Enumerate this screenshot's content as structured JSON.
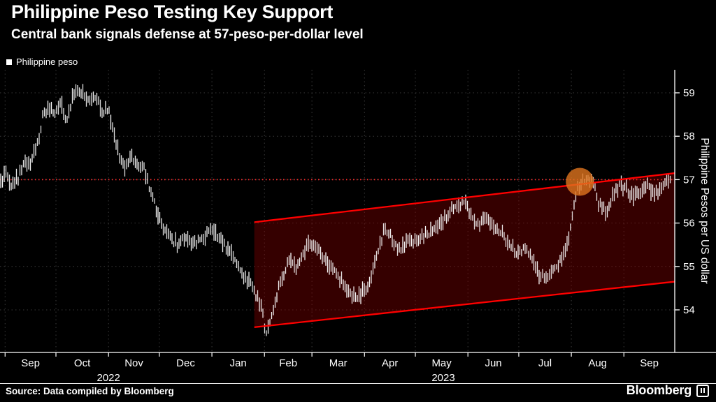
{
  "chart_data": {
    "type": "line",
    "style": "daily_range_bars",
    "title": "Philippine Peso Testing Key Support",
    "subtitle": "Central bank signals defense at 57-peso-per-dollar level",
    "ylabel": "Philippine Pesos per US dollar",
    "background": "#000000",
    "grid_color": "#3a3a3a",
    "axis_color": "#ffffff",
    "bar_color": "#ffffff",
    "grid": true,
    "ylim": [
      53.0,
      59.6
    ],
    "y_ticks": [
      54,
      55,
      56,
      57,
      58,
      59
    ],
    "x_range": [
      "2022-08-29",
      "2023-10-01"
    ],
    "x_tick_labels": [
      "Sep",
      "Oct",
      "Nov",
      "Dec",
      "Jan",
      "Feb",
      "Mar",
      "Apr",
      "May",
      "Jun",
      "Jul",
      "Aug",
      "Sep"
    ],
    "year_labels": [
      {
        "label": "2022",
        "from": "2022-09-01",
        "to": "2023-01-01"
      },
      {
        "label": "2023",
        "from": "2023-01-01",
        "to": "2023-10-01"
      }
    ],
    "support_line": {
      "value": 57,
      "color": "#ff2b2b",
      "style": "dotted"
    },
    "channel": {
      "start": "2023-01-26",
      "end": "2023-10-01",
      "top_start": 56.02,
      "top_end": 57.15,
      "bottom_start": 53.6,
      "bottom_end": 54.65,
      "line_color": "#ff0000",
      "fill_color": "rgba(139,0,0,0.38)"
    },
    "highlight": {
      "date": "2023-08-06",
      "value": 56.95,
      "radius_px": 20,
      "color": "#e0741e",
      "opacity": 0.8
    },
    "series": [
      {
        "name": "Philippine peso",
        "color": "#ffffff",
        "points": [
          [
            "2022-08-29",
            56.9
          ],
          [
            "2022-09-01",
            57.15
          ],
          [
            "2022-09-05",
            56.85
          ],
          [
            "2022-09-08",
            57.0
          ],
          [
            "2022-09-13",
            57.4
          ],
          [
            "2022-09-16",
            57.45
          ],
          [
            "2022-09-20",
            57.8
          ],
          [
            "2022-09-23",
            58.4
          ],
          [
            "2022-09-27",
            58.7
          ],
          [
            "2022-09-30",
            58.5
          ],
          [
            "2022-10-04",
            58.8
          ],
          [
            "2022-10-07",
            58.35
          ],
          [
            "2022-10-11",
            58.9
          ],
          [
            "2022-10-14",
            59.0
          ],
          [
            "2022-10-18",
            58.95
          ],
          [
            "2022-10-21",
            58.8
          ],
          [
            "2022-10-25",
            58.9
          ],
          [
            "2022-10-28",
            58.55
          ],
          [
            "2022-11-01",
            58.65
          ],
          [
            "2022-11-04",
            58.1
          ],
          [
            "2022-11-08",
            57.5
          ],
          [
            "2022-11-11",
            57.2
          ],
          [
            "2022-11-15",
            57.55
          ],
          [
            "2022-11-18",
            57.35
          ],
          [
            "2022-11-22",
            57.25
          ],
          [
            "2022-11-25",
            56.8
          ],
          [
            "2022-11-29",
            56.35
          ],
          [
            "2022-12-02",
            55.95
          ],
          [
            "2022-12-07",
            55.65
          ],
          [
            "2022-12-12",
            55.5
          ],
          [
            "2022-12-15",
            55.7
          ],
          [
            "2022-12-20",
            55.5
          ],
          [
            "2022-12-23",
            55.55
          ],
          [
            "2022-12-28",
            55.65
          ],
          [
            "2022-12-30",
            55.9
          ],
          [
            "2023-01-04",
            55.75
          ],
          [
            "2023-01-09",
            55.45
          ],
          [
            "2023-01-12",
            55.35
          ],
          [
            "2023-01-17",
            55.0
          ],
          [
            "2023-01-20",
            54.75
          ],
          [
            "2023-01-24",
            54.55
          ],
          [
            "2023-01-27",
            54.35
          ],
          [
            "2023-01-31",
            53.9
          ],
          [
            "2023-02-02",
            53.45
          ],
          [
            "2023-02-06",
            53.95
          ],
          [
            "2023-02-09",
            54.5
          ],
          [
            "2023-02-13",
            54.9
          ],
          [
            "2023-02-16",
            55.15
          ],
          [
            "2023-02-20",
            54.95
          ],
          [
            "2023-02-23",
            55.25
          ],
          [
            "2023-02-27",
            55.5
          ],
          [
            "2023-03-02",
            55.45
          ],
          [
            "2023-03-07",
            55.25
          ],
          [
            "2023-03-10",
            55.05
          ],
          [
            "2023-03-15",
            54.85
          ],
          [
            "2023-03-20",
            54.55
          ],
          [
            "2023-03-24",
            54.35
          ],
          [
            "2023-03-29",
            54.3
          ],
          [
            "2023-04-03",
            54.6
          ],
          [
            "2023-04-06",
            54.95
          ],
          [
            "2023-04-11",
            55.6
          ],
          [
            "2023-04-13",
            55.95
          ],
          [
            "2023-04-18",
            55.55
          ],
          [
            "2023-04-21",
            55.35
          ],
          [
            "2023-04-26",
            55.6
          ],
          [
            "2023-05-02",
            55.55
          ],
          [
            "2023-05-05",
            55.65
          ],
          [
            "2023-05-10",
            55.8
          ],
          [
            "2023-05-15",
            55.95
          ],
          [
            "2023-05-19",
            56.15
          ],
          [
            "2023-05-24",
            56.35
          ],
          [
            "2023-05-30",
            56.5
          ],
          [
            "2023-06-02",
            56.25
          ],
          [
            "2023-06-07",
            55.95
          ],
          [
            "2023-06-12",
            56.1
          ],
          [
            "2023-06-15",
            56.0
          ],
          [
            "2023-06-21",
            55.75
          ],
          [
            "2023-06-26",
            55.5
          ],
          [
            "2023-06-30",
            55.3
          ],
          [
            "2023-07-05",
            55.45
          ],
          [
            "2023-07-10",
            55.05
          ],
          [
            "2023-07-13",
            54.8
          ],
          [
            "2023-07-18",
            54.7
          ],
          [
            "2023-07-21",
            54.95
          ],
          [
            "2023-07-26",
            55.15
          ],
          [
            "2023-07-31",
            55.65
          ],
          [
            "2023-08-02",
            56.3
          ],
          [
            "2023-08-04",
            56.75
          ],
          [
            "2023-08-08",
            56.95
          ],
          [
            "2023-08-11",
            57.0
          ],
          [
            "2023-08-15",
            56.85
          ],
          [
            "2023-08-17",
            56.45
          ],
          [
            "2023-08-22",
            56.25
          ],
          [
            "2023-08-25",
            56.6
          ],
          [
            "2023-08-30",
            56.9
          ],
          [
            "2023-09-04",
            56.7
          ],
          [
            "2023-09-07",
            56.6
          ],
          [
            "2023-09-12",
            56.8
          ],
          [
            "2023-09-15",
            56.9
          ],
          [
            "2023-09-19",
            56.65
          ],
          [
            "2023-09-22",
            56.8
          ],
          [
            "2023-09-26",
            56.95
          ],
          [
            "2023-09-29",
            57.0
          ]
        ]
      }
    ]
  },
  "footer": {
    "source": "Source: Data compiled by Bloomberg",
    "brand": "Bloomberg"
  }
}
